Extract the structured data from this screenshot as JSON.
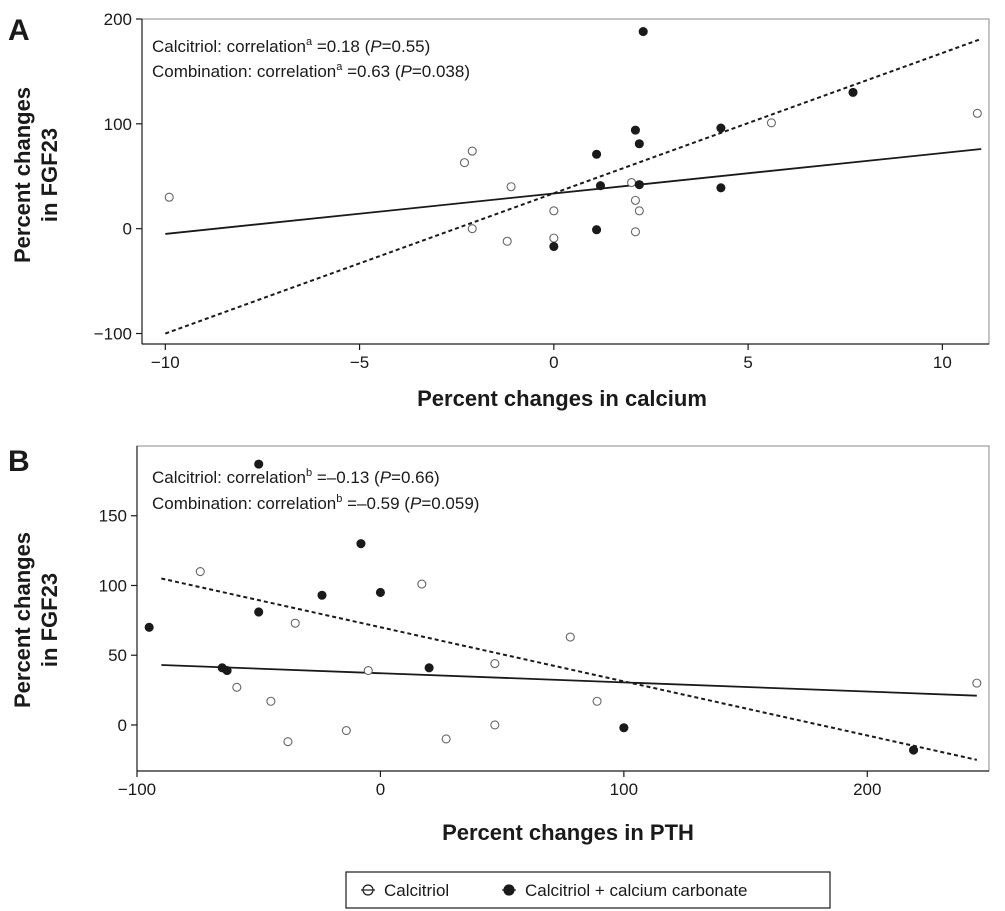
{
  "chart_data": [
    {
      "type": "scatter",
      "panel": "A",
      "xlabel": "Percent changes in calcium",
      "ylabel": [
        "Percent changes",
        "in FGF23"
      ],
      "xlim": [
        -10.6,
        11.2
      ],
      "ylim": [
        -110,
        200
      ],
      "xticks": [
        -10,
        -5,
        0,
        5,
        10
      ],
      "xtick_labels": [
        "−10",
        "−5",
        "0",
        "5",
        "10"
      ],
      "yticks": [
        -100,
        0,
        100,
        200
      ],
      "ytick_labels": [
        "−100",
        "0",
        "100",
        "200"
      ],
      "grid": false,
      "annotations": [
        {
          "pre": "Calcitriol: correlation",
          "sup": "a",
          "mid": " =0.18 (",
          "italic": "P",
          "post": "=0.55)"
        },
        {
          "pre": "Combination: correlation",
          "sup": "a",
          "mid": " =0.63 (",
          "italic": "P",
          "post": "=0.038)"
        }
      ],
      "series": [
        {
          "name": "Calcitriol",
          "marker": "open",
          "fit_line": {
            "style": "solid",
            "x": [
              -10,
              11
            ],
            "y": [
              -5,
              76
            ]
          },
          "points": [
            [
              -9.9,
              30
            ],
            [
              -2.3,
              63
            ],
            [
              -2.1,
              74
            ],
            [
              -2.1,
              0
            ],
            [
              -1.1,
              40
            ],
            [
              -1.2,
              -12
            ],
            [
              0,
              17
            ],
            [
              0,
              -9
            ],
            [
              2.0,
              44
            ],
            [
              2.1,
              27
            ],
            [
              2.2,
              17
            ],
            [
              2.1,
              -3
            ],
            [
              5.6,
              101
            ],
            [
              10.9,
              110
            ]
          ]
        },
        {
          "name": "Calcitriol + calcium carbonate",
          "marker": "filled",
          "fit_line": {
            "style": "dotted",
            "x": [
              -10,
              11
            ],
            "y": [
              -100,
              181
            ]
          },
          "points": [
            [
              2.3,
              188
            ],
            [
              7.7,
              130
            ],
            [
              2.1,
              94
            ],
            [
              4.3,
              96
            ],
            [
              2.2,
              81
            ],
            [
              1.1,
              71
            ],
            [
              1.2,
              41
            ],
            [
              2.2,
              42
            ],
            [
              4.3,
              39
            ],
            [
              1.1,
              -1
            ],
            [
              0,
              -17
            ]
          ]
        }
      ]
    },
    {
      "type": "scatter",
      "panel": "B",
      "xlabel": "Percent changes in PTH",
      "ylabel": [
        "Percent changes",
        "in FGF23"
      ],
      "xlim": [
        -100,
        250
      ],
      "ylim": [
        -33,
        200
      ],
      "xticks": [
        -100,
        0,
        100,
        200
      ],
      "xtick_labels": [
        "−100",
        "0",
        "100",
        "200"
      ],
      "yticks": [
        0,
        50,
        100,
        150
      ],
      "ytick_labels": [
        "0",
        "50",
        "100",
        "150"
      ],
      "grid": false,
      "annotations": [
        {
          "pre": "Calcitriol: correlation",
          "sup": "b",
          "mid": " =–0.13 (",
          "italic": "P",
          "post": "=0.66)"
        },
        {
          "pre": "Combination: correlation",
          "sup": "b",
          "mid": " =–0.59 (",
          "italic": "P",
          "post": "=0.059)"
        }
      ],
      "series": [
        {
          "name": "Calcitriol",
          "marker": "open",
          "fit_line": {
            "style": "solid",
            "x": [
              -90,
              245
            ],
            "y": [
              43,
              21
            ]
          },
          "points": [
            [
              -74,
              110
            ],
            [
              -35,
              73
            ],
            [
              -59,
              27
            ],
            [
              -45,
              17
            ],
            [
              -38,
              -12
            ],
            [
              -14,
              -4
            ],
            [
              -5,
              39
            ],
            [
              17,
              101
            ],
            [
              27,
              -10
            ],
            [
              47,
              44
            ],
            [
              47,
              0
            ],
            [
              78,
              63
            ],
            [
              89,
              17
            ],
            [
              245,
              30
            ]
          ]
        },
        {
          "name": "Calcitriol + calcium carbonate",
          "marker": "filled",
          "fit_line": {
            "style": "dotted",
            "x": [
              -90,
              245
            ],
            "y": [
              105,
              -25
            ]
          },
          "points": [
            [
              -95,
              70
            ],
            [
              -50,
              187
            ],
            [
              -50,
              81
            ],
            [
              -8,
              130
            ],
            [
              -24,
              93
            ],
            [
              0,
              95
            ],
            [
              -65,
              41
            ],
            [
              -63,
              39
            ],
            [
              20,
              41
            ],
            [
              100,
              -2
            ],
            [
              219,
              -18
            ]
          ]
        }
      ]
    }
  ],
  "legend": {
    "position": "bottom-center",
    "items": [
      {
        "label": "Calcitriol",
        "marker": "open"
      },
      {
        "label": "Calcitriol + calcium carbonate",
        "marker": "filled"
      }
    ]
  },
  "colors": {
    "ink": "#1a1a1a",
    "frame": "#888888",
    "background": "#ffffff"
  }
}
